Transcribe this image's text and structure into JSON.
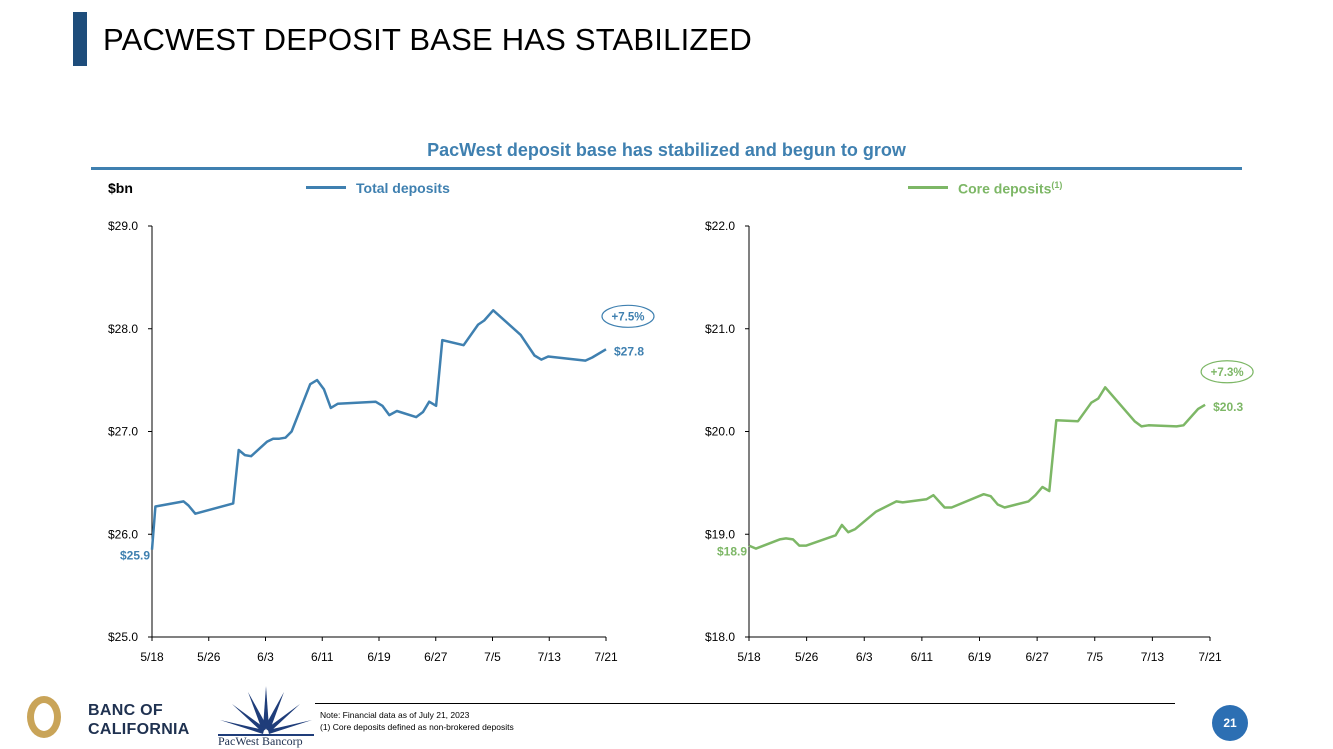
{
  "header": {
    "title": "PACWEST DEPOSIT BASE HAS STABILIZED"
  },
  "subtitle": "PacWest deposit base has stabilized and begun to grow",
  "unit_label": "$bn",
  "legend": {
    "total": "Total deposits",
    "core": "Core deposits",
    "core_sup": "(1)"
  },
  "colors": {
    "total": "#3f80b0",
    "core": "#7db766",
    "title_bar": "#1e4d7b"
  },
  "chart_data": [
    {
      "type": "line",
      "series": [
        {
          "name": "Total deposits",
          "color": "#3f80b0"
        }
      ],
      "xlabel": "",
      "ylabel": "$bn",
      "x_ticks": [
        "5/18",
        "5/26",
        "6/3",
        "6/11",
        "6/19",
        "6/27",
        "7/5",
        "7/13",
        "7/21"
      ],
      "y_ticks": [
        "$25.0",
        "$26.0",
        "$27.0",
        "$28.0",
        "$29.0"
      ],
      "ylim": [
        25.0,
        29.0
      ],
      "points": [
        [
          0,
          25.85
        ],
        [
          0.5,
          26.27
        ],
        [
          4.6,
          26.32
        ],
        [
          5.3,
          26.28
        ],
        [
          6.3,
          26.2
        ],
        [
          11.8,
          26.3
        ],
        [
          12.6,
          26.82
        ],
        [
          13.5,
          26.77
        ],
        [
          14.4,
          26.76
        ],
        [
          16.7,
          26.9
        ],
        [
          17.6,
          26.93
        ],
        [
          18.5,
          26.93
        ],
        [
          19.4,
          26.94
        ],
        [
          20.3,
          27.0
        ],
        [
          23.0,
          27.46
        ],
        [
          24.0,
          27.5
        ],
        [
          25.0,
          27.41
        ],
        [
          26.0,
          27.23
        ],
        [
          27.0,
          27.27
        ],
        [
          32.5,
          27.29
        ],
        [
          33.5,
          27.25
        ],
        [
          34.5,
          27.16
        ],
        [
          35.6,
          27.2
        ],
        [
          38.4,
          27.14
        ],
        [
          39.4,
          27.19
        ],
        [
          40.3,
          27.29
        ],
        [
          41.3,
          27.25
        ],
        [
          42.2,
          27.89
        ],
        [
          45.3,
          27.84
        ],
        [
          47.4,
          28.04
        ],
        [
          48.3,
          28.08
        ],
        [
          49.6,
          28.18
        ],
        [
          53.6,
          27.94
        ],
        [
          55.6,
          27.74
        ],
        [
          56.6,
          27.7
        ],
        [
          57.6,
          27.73
        ],
        [
          63.0,
          27.69
        ],
        [
          64.0,
          27.72
        ],
        [
          66.0,
          27.8
        ]
      ],
      "start_label": "$25.9",
      "end_label": "$27.8",
      "change_label": "+7.5%"
    },
    {
      "type": "line",
      "series": [
        {
          "name": "Core deposits",
          "color": "#7db766"
        }
      ],
      "xlabel": "",
      "ylabel": "",
      "x_ticks": [
        "5/18",
        "5/26",
        "6/3",
        "6/11",
        "6/19",
        "6/27",
        "7/5",
        "7/13",
        "7/21"
      ],
      "y_ticks": [
        "$18.0",
        "$19.0",
        "$20.0",
        "$21.0",
        "$22.0"
      ],
      "ylim": [
        18.0,
        22.0
      ],
      "points": [
        [
          0,
          18.89
        ],
        [
          1.0,
          18.86
        ],
        [
          4.4,
          18.95
        ],
        [
          5.3,
          18.96
        ],
        [
          6.3,
          18.95
        ],
        [
          7.2,
          18.89
        ],
        [
          8.2,
          18.89
        ],
        [
          12.4,
          18.99
        ],
        [
          13.3,
          19.09
        ],
        [
          14.2,
          19.02
        ],
        [
          15.2,
          19.05
        ],
        [
          18.2,
          19.22
        ],
        [
          21.1,
          19.32
        ],
        [
          22.0,
          19.31
        ],
        [
          25.4,
          19.34
        ],
        [
          26.4,
          19.38
        ],
        [
          28.0,
          19.26
        ],
        [
          29.0,
          19.26
        ],
        [
          33.6,
          19.39
        ],
        [
          34.6,
          19.37
        ],
        [
          35.6,
          19.29
        ],
        [
          36.6,
          19.26
        ],
        [
          40.0,
          19.32
        ],
        [
          41.0,
          19.38
        ],
        [
          42.0,
          19.46
        ],
        [
          43.0,
          19.42
        ],
        [
          44.0,
          20.11
        ],
        [
          47.1,
          20.1
        ],
        [
          49.0,
          20.28
        ],
        [
          50.0,
          20.32
        ],
        [
          51.0,
          20.43
        ],
        [
          55.2,
          20.1
        ],
        [
          56.2,
          20.05
        ],
        [
          57.2,
          20.06
        ],
        [
          61.2,
          20.05
        ],
        [
          62.2,
          20.06
        ],
        [
          64.3,
          20.22
        ],
        [
          65.3,
          20.26
        ]
      ],
      "start_label": "$18.9",
      "end_label": "$20.3",
      "change_label": "+7.3%"
    }
  ],
  "footer": {
    "note1": "Note: Financial data as of July 21, 2023",
    "note2": "(1) Core deposits defined as non-brokered deposits",
    "page_number": "21",
    "banc_line1": "BANC OF",
    "banc_line2": "CALIFORNIA",
    "pacwest_logo": "PacWest Bancorp",
    "banc_logo_icon": "gold-ring-icon",
    "pacwest_logo_icon": "starburst-icon"
  }
}
